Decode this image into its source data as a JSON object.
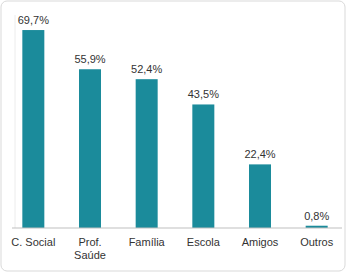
{
  "chart_data": {
    "type": "bar",
    "categories": [
      "C. Social",
      "Prof.\nSaúde",
      "Família",
      "Escola",
      "Amigos",
      "Outros"
    ],
    "values": [
      69.7,
      55.9,
      52.4,
      43.5,
      22.4,
      0.8
    ],
    "value_labels": [
      "69,7%",
      "55,9%",
      "52,4%",
      "43,5%",
      "22,4%",
      "0,8%"
    ],
    "color": "#1b8b9b",
    "ylim": [
      0,
      75
    ],
    "data_labels": true,
    "tick_labels": "x",
    "grid": false
  }
}
